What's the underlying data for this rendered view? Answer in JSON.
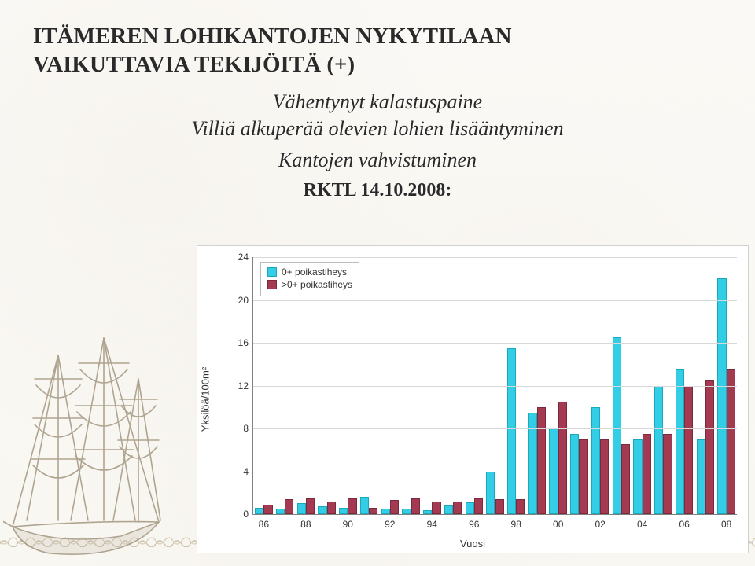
{
  "title_line1": "ITÄMEREN LOHIKANTOJEN NYKYTILAAN",
  "title_line2": "VAIKUTTAVIA TEKIJÖITÄ (+)",
  "bullets": [
    "Vähentynyt kalastuspaine",
    "Villiä alkuperää olevien lohien lisääntyminen",
    "Kantojen vahvistuminen"
  ],
  "source_label": "RKTL 14.10.2008:",
  "chart": {
    "type": "bar",
    "ylabel": "Yksilöä/100m²",
    "xlabel": "Vuosi",
    "ylim": [
      0,
      24
    ],
    "ytick_step": 4,
    "grid_color": "#d8d8d8",
    "axis_color": "#808080",
    "background_color": "#ffffff",
    "label_fontsize": 13,
    "tick_fontsize": 12,
    "bar_width": 0.42,
    "categories": [
      "86",
      "87",
      "88",
      "89",
      "90",
      "91",
      "92",
      "93",
      "94",
      "95",
      "96",
      "97",
      "98",
      "99",
      "00",
      "01",
      "02",
      "03",
      "04",
      "05",
      "06",
      "07",
      "08"
    ],
    "x_tick_every": 2,
    "series": [
      {
        "name": "0+ poikastiheys",
        "color": "#33cee6",
        "border": "#1aa8bd",
        "values": [
          0.6,
          0.5,
          1.0,
          0.7,
          0.6,
          1.6,
          0.5,
          0.5,
          0.4,
          0.8,
          1.1,
          4.0,
          15.5,
          9.5,
          8.0,
          7.5,
          10.0,
          16.5,
          7.0,
          12.0,
          13.5,
          7.0,
          22.0
        ]
      },
      {
        "name": ">0+ poikastiheys",
        "color": "#a43a52",
        "border": "#7a2a3c",
        "values": [
          0.9,
          1.4,
          1.5,
          1.2,
          1.5,
          0.6,
          1.3,
          1.5,
          1.2,
          1.2,
          1.5,
          1.4,
          1.4,
          10.0,
          10.5,
          7.0,
          7.0,
          6.5,
          7.5,
          7.5,
          12.0,
          12.5,
          13.5
        ]
      }
    ],
    "legend": {
      "position": "upper-left",
      "items": [
        "0+ poikastiheys",
        ">0+ poikastiheys"
      ]
    }
  }
}
